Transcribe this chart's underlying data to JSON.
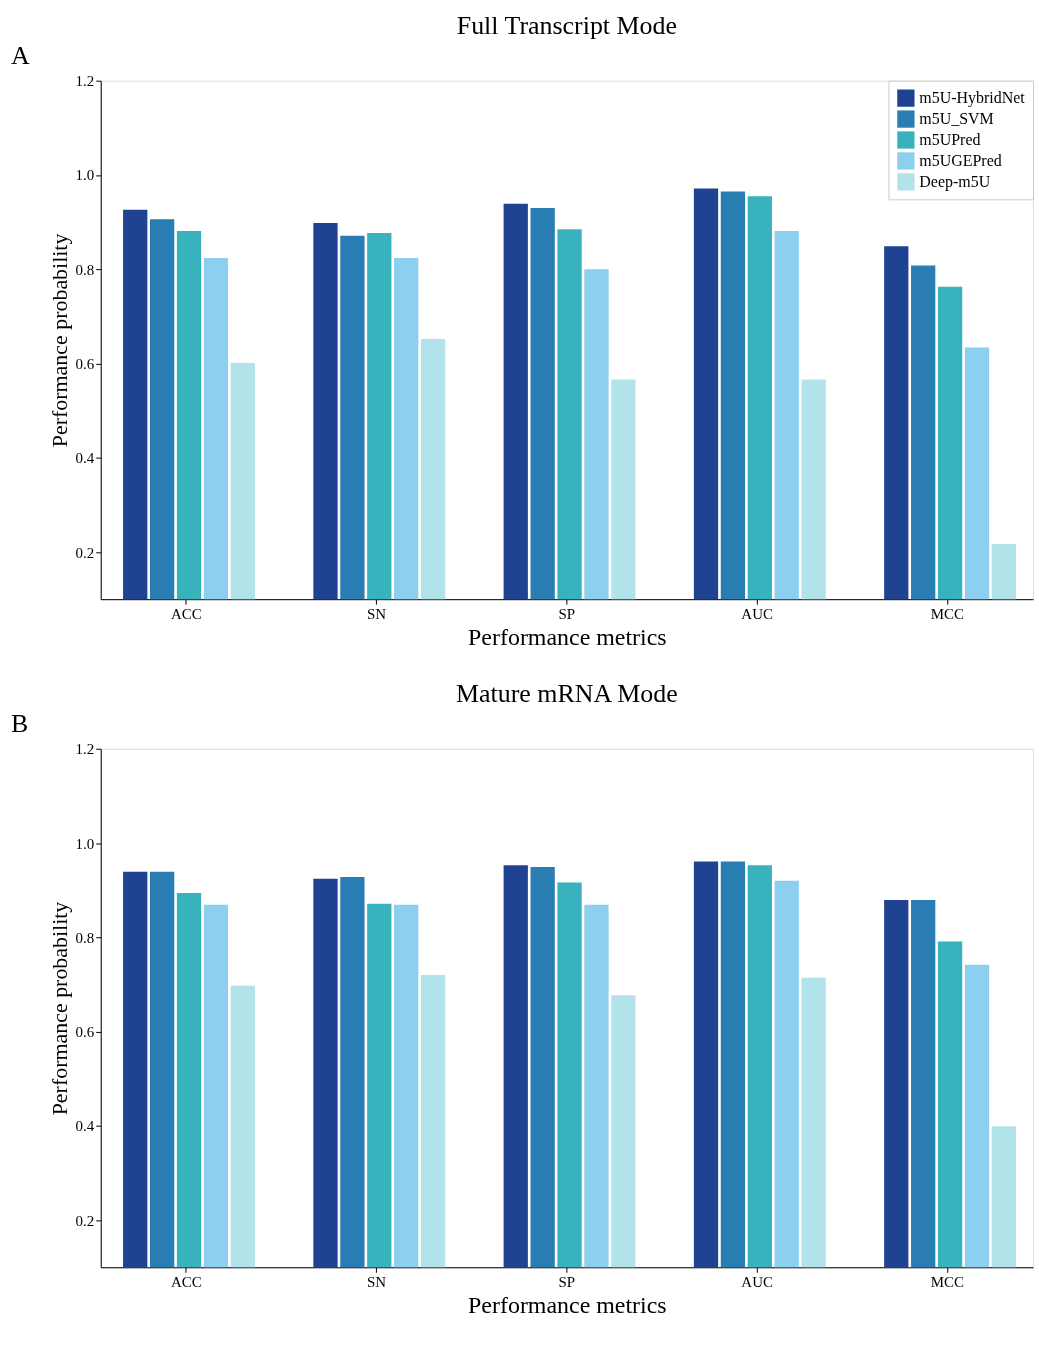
{
  "chart_data": [
    {
      "type": "bar",
      "title": "Full Transcript Mode",
      "xlabel": "Performance metrics",
      "ylabel": "Performance probability",
      "annotations": [
        "A"
      ],
      "categories": [
        "ACC",
        "SN",
        "SP",
        "AUC",
        "MCC"
      ],
      "series": [
        {
          "name": "m5U-HybridNet",
          "color": "#1f4390",
          "values": [
            0.926,
            0.898,
            0.939,
            0.971,
            0.849
          ]
        },
        {
          "name": "m5U_SVM",
          "color": "#2a7db3",
          "values": [
            0.906,
            0.871,
            0.93,
            0.965,
            0.808
          ]
        },
        {
          "name": "m5UPred",
          "color": "#38b2bc",
          "values": [
            0.881,
            0.877,
            0.885,
            0.955,
            0.763
          ]
        },
        {
          "name": "m5UGEPred",
          "color": "#8ccfee",
          "values": [
            0.824,
            0.824,
            0.8,
            0.881,
            0.634
          ]
        },
        {
          "name": "Deep-m5U",
          "color": "#b3e3ea",
          "values": [
            0.601,
            0.652,
            0.566,
            0.566,
            0.217
          ]
        }
      ],
      "ylim": [
        0.1,
        1.2
      ],
      "yticks": [
        0.2,
        0.4,
        0.6,
        0.8,
        {
          "value": 1.0,
          "label": "1.0"
        },
        1.2
      ],
      "legend": "top right",
      "grid": false
    },
    {
      "type": "bar",
      "title": "Mature mRNA Mode",
      "xlabel": "Performance metrics",
      "ylabel": "Performance probability",
      "annotations": [
        "B"
      ],
      "categories": [
        "ACC",
        "SN",
        "SP",
        "AUC",
        "MCC"
      ],
      "series": [
        {
          "name": "m5U-HybridNet",
          "color": "#1f4390",
          "values": [
            0.939,
            0.924,
            0.953,
            0.961,
            0.879
          ]
        },
        {
          "name": "m5U_SVM",
          "color": "#2a7db3",
          "values": [
            0.939,
            0.928,
            0.949,
            0.961,
            0.879
          ]
        },
        {
          "name": "m5UPred",
          "color": "#38b2bc",
          "values": [
            0.894,
            0.871,
            0.916,
            0.953,
            0.791
          ]
        },
        {
          "name": "m5UGEPred",
          "color": "#8ccfee",
          "values": [
            0.869,
            0.869,
            0.869,
            0.92,
            0.742
          ]
        },
        {
          "name": "Deep-m5U",
          "color": "#b3e3ea",
          "values": [
            0.697,
            0.72,
            0.677,
            0.714,
            0.399
          ]
        }
      ],
      "ylim": [
        0.1,
        1.2
      ],
      "yticks": [
        0.2,
        0.4,
        0.6,
        0.8,
        {
          "value": 1.0,
          "label": "1.0"
        },
        1.2
      ],
      "legend": "top right",
      "grid": false
    }
  ]
}
